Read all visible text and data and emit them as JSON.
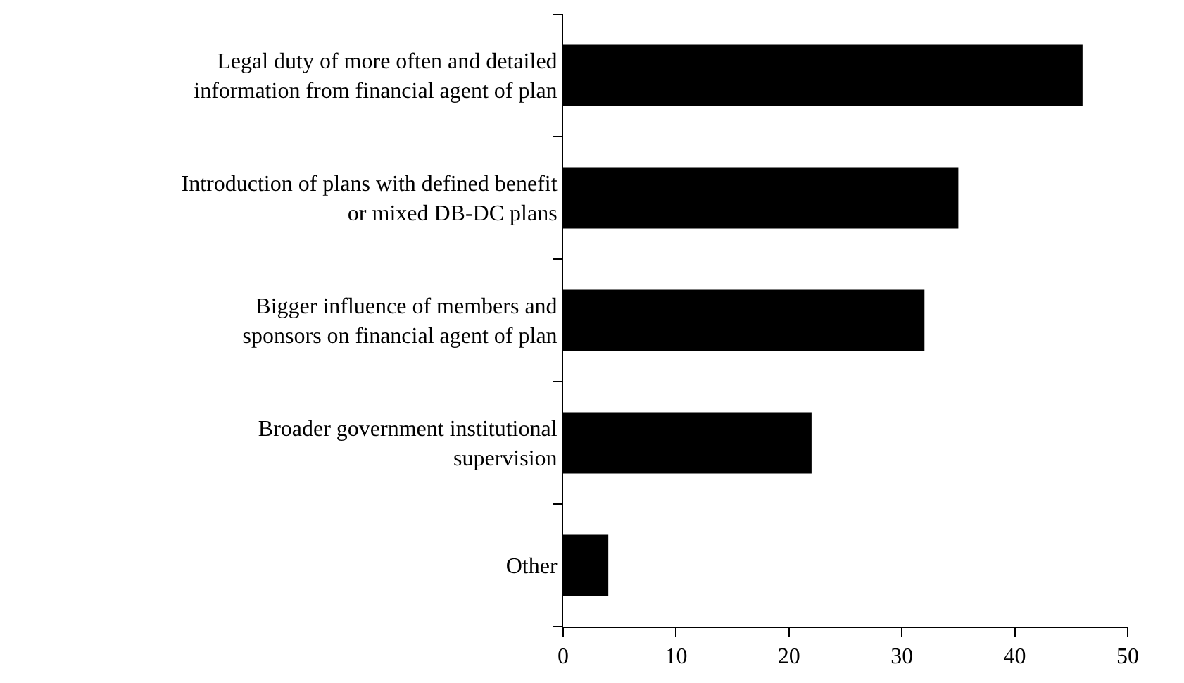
{
  "chart_data": {
    "type": "bar",
    "orientation": "horizontal",
    "categories": [
      "Legal duty of more often and detailed\ninformation from financial agent of plan",
      "Introduction of plans with defined benefit\nor mixed DB-DC plans",
      "Bigger influence of members and\nsponsors on financial agent of plan",
      "Broader government institutional\nsupervision",
      "Other"
    ],
    "values": [
      46,
      35,
      32,
      22,
      4
    ],
    "color": "#000000",
    "xlim": [
      0,
      50
    ],
    "xticks": [
      0,
      10,
      20,
      30,
      40,
      50
    ],
    "grid": false,
    "legend": false
  }
}
